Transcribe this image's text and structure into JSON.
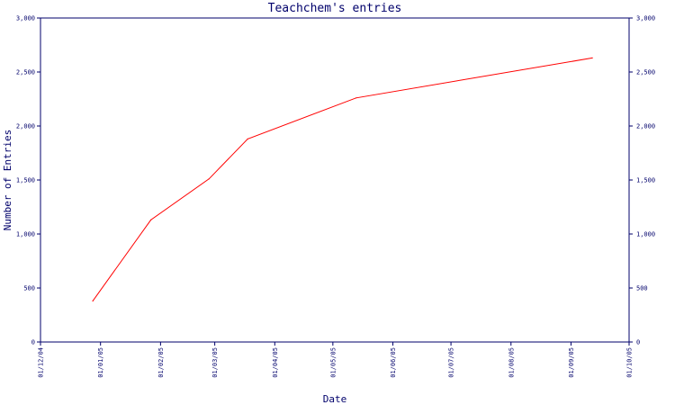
{
  "chart_data": {
    "type": "line",
    "title": "Teachchem's entries",
    "xlabel": "Date",
    "ylabel": "Number of Entries",
    "x_ticks": [
      "01/12/04",
      "01/01/05",
      "01/02/05",
      "01/03/05",
      "01/04/05",
      "01/05/05",
      "01/06/05",
      "01/07/05",
      "01/08/05",
      "01/09/05",
      "01/10/05"
    ],
    "y_ticks": [
      "0",
      "500",
      "1,000",
      "1,500",
      "2,000",
      "2,500",
      "3,000"
    ],
    "ylim": [
      0,
      3000
    ],
    "xlim": [
      "2004-12-01",
      "2005-10-01"
    ],
    "grid": false,
    "series": [
      {
        "color": "#ff0000",
        "points": [
          {
            "x": "2004-12-28",
            "y": 380
          },
          {
            "x": "2005-01-27",
            "y": 1130
          },
          {
            "x": "2005-02-26",
            "y": 1510
          },
          {
            "x": "2005-03-18",
            "y": 1880
          },
          {
            "x": "2005-05-13",
            "y": 2260
          },
          {
            "x": "2005-09-12",
            "y": 2630
          }
        ]
      }
    ],
    "colors": {
      "axis": "#00006b",
      "text": "#00006b",
      "line": "#ff0000"
    }
  }
}
